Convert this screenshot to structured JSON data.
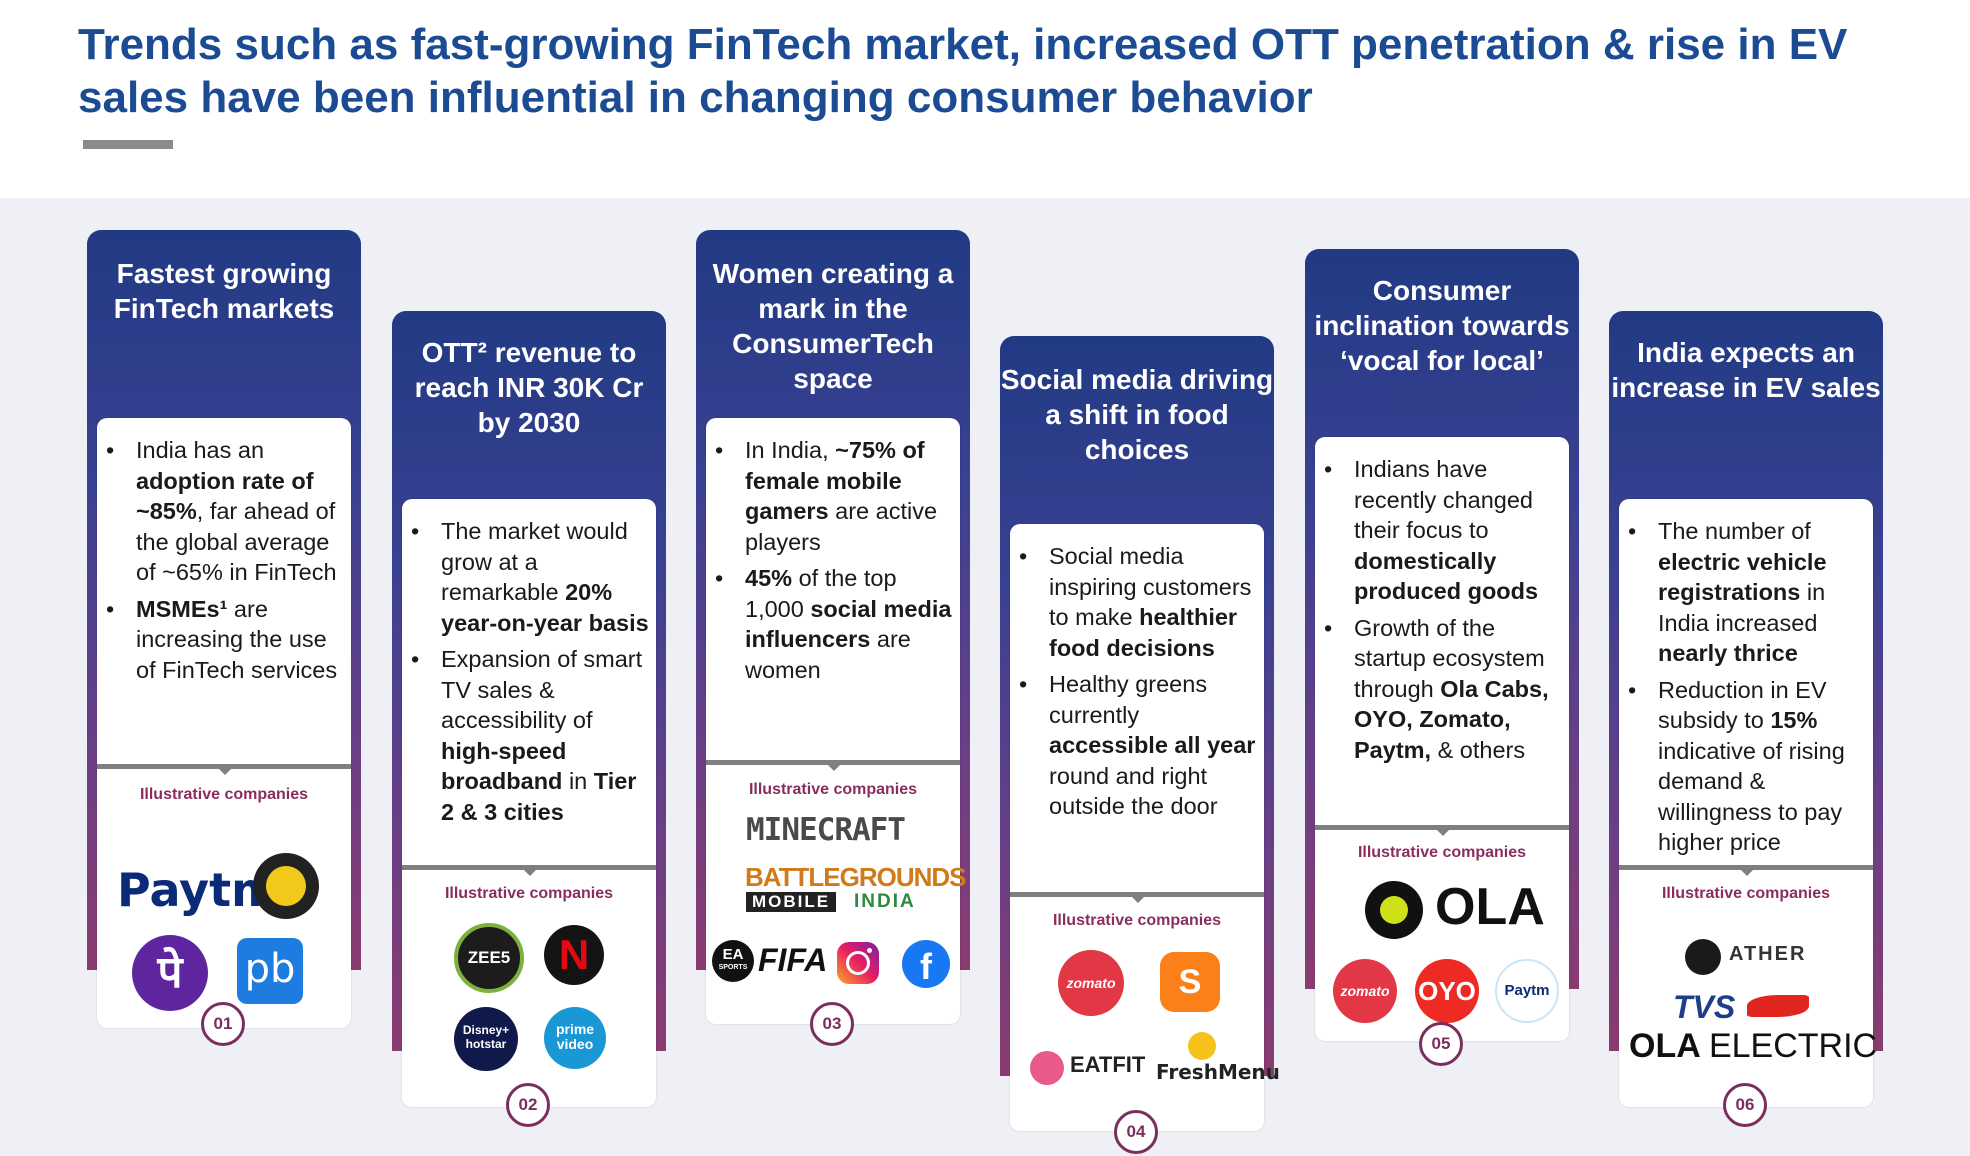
{
  "title": "Trends such as fast-growing FinTech market, increased OTT penetration & rise in EV sales have been influential in changing consumer behavior",
  "illustrative_label": "Illustrative companies",
  "columns": [
    {
      "heading": "Fastest growing FinTech markets",
      "number": "01",
      "bullets": [
        [
          {
            "t": "India has an "
          },
          {
            "t": "adoption rate of ~85%",
            "b": true
          },
          {
            "t": ", far ahead of the global average of ~65% in FinTech"
          }
        ],
        [
          {
            "t": "MSMEs¹",
            "b": true
          },
          {
            "t": " are increasing the use of FinTech services"
          }
        ]
      ],
      "logos": {
        "paytm": "Paytm",
        "phonepe": "पे",
        "pb": "pb"
      }
    },
    {
      "heading": "OTT² revenue to reach INR 30K Cr by 2030",
      "number": "02",
      "bullets": [
        [
          {
            "t": "The market would grow at a remarkable "
          },
          {
            "t": "20% year-on-year basis",
            "b": true
          }
        ],
        [
          {
            "t": "Expansion of smart TV sales & accessibility of "
          },
          {
            "t": "high-speed broadband",
            "b": true
          },
          {
            "t": " in "
          },
          {
            "t": "Tier 2 & 3 cities",
            "b": true
          }
        ]
      ],
      "logos": {
        "zee5": "ZEE5",
        "netflix": "N",
        "hotstar_top": "Disney+",
        "hotstar_bottom": "hotstar",
        "prime_top": "prime",
        "prime_bottom": "video"
      }
    },
    {
      "heading": "Women creating a mark in the ConsumerTech space",
      "number": "03",
      "bullets": [
        [
          {
            "t": "In India, "
          },
          {
            "t": "~75% of female mobile gamers",
            "b": true
          },
          {
            "t": " are active players"
          }
        ],
        [
          {
            "t": "45%",
            "b": true
          },
          {
            "t": " of the top 1,000 "
          },
          {
            "t": "social media influencers",
            "b": true
          },
          {
            "t": " are women"
          }
        ]
      ],
      "logos": {
        "minecraft": "MINECRAFT",
        "bg_top": "BATTLEGROUNDS",
        "bg_mobile": "MOBILE",
        "bg_india": "INDIA",
        "ea": "EA",
        "ea_sports": "SPORTS",
        "fifa": "FIFA",
        "facebook": "f"
      }
    },
    {
      "heading": "Social media driving a shift in food choices",
      "number": "04",
      "bullets": [
        [
          {
            "t": "Social media inspiring customers to make "
          },
          {
            "t": "healthier food decisions",
            "b": true
          }
        ],
        [
          {
            "t": "Healthy greens currently "
          },
          {
            "t": "accessible all year",
            "b": true
          },
          {
            "t": " round and right outside the door"
          }
        ]
      ],
      "logos": {
        "zomato": "zomato",
        "swiggy": "S",
        "eatfit": "EATFIT",
        "freshmenu": "FreshMenu"
      }
    },
    {
      "heading": "Consumer inclination towards ‘vocal for local’",
      "number": "05",
      "bullets": [
        [
          {
            "t": "Indians have recently changed their focus to "
          },
          {
            "t": "domestically produced goods",
            "b": true
          }
        ],
        [
          {
            "t": "Growth of the startup ecosystem through "
          },
          {
            "t": "Ola Cabs, OYO, Zomato, Paytm,",
            "b": true
          },
          {
            "t": " & others"
          }
        ]
      ],
      "logos": {
        "ola": "OLA",
        "zomato": "zomato",
        "oyo": "OYO",
        "paytm": "Paytm"
      }
    },
    {
      "heading": "India expects an increase in EV sales",
      "number": "06",
      "bullets": [
        [
          {
            "t": "The number of "
          },
          {
            "t": "electric vehicle registrations",
            "b": true
          },
          {
            "t": " in India increased "
          },
          {
            "t": "nearly thrice",
            "b": true
          }
        ],
        [
          {
            "t": "Reduction in EV subsidy to "
          },
          {
            "t": "15%",
            "b": true
          },
          {
            "t": " indicative of rising demand & willingness to pay higher price"
          }
        ]
      ],
      "logos": {
        "ather": "ATHER",
        "tvs": "TVS",
        "ola_electric_a": "OLA",
        "ola_electric_b": "ELECTRIC"
      }
    }
  ]
}
